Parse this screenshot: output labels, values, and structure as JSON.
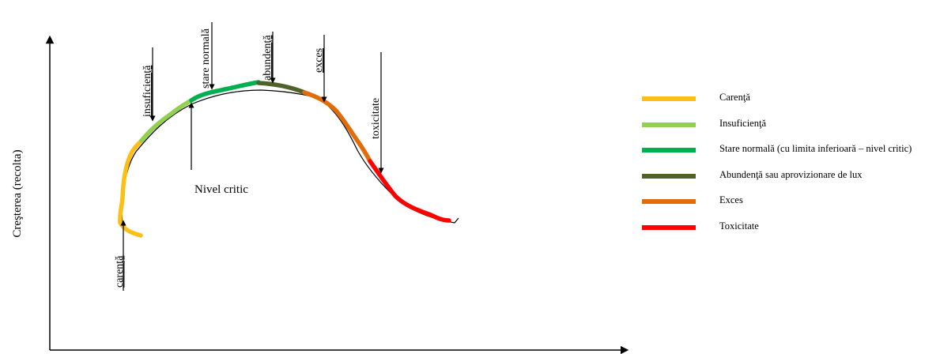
{
  "diagram": {
    "y_axis_label": "Creşterea  (recolta)",
    "annotations": {
      "carenta": "carenţă",
      "insuficienta": "insuficienţă",
      "stare_normala": "stare normală",
      "abundenta": "abundenţă",
      "exces": "exces",
      "toxicitate": "toxicitate",
      "nivel_critic": "Nivel critic"
    }
  },
  "legend": {
    "items": [
      {
        "label": "Carenţă",
        "color": "#fbbf16"
      },
      {
        "label": "Insuficienţă",
        "color": "#92d050"
      },
      {
        "label": "Stare normală (cu limita inferioară – nivel critic)",
        "color": "#00b050"
      },
      {
        "label": "Abundenţă sau aprovizionare de lux",
        "color": "#4f6228"
      },
      {
        "label": "Exces",
        "color": "#e36c09"
      },
      {
        "label": "Toxicitate",
        "color": "#ff0000"
      }
    ]
  }
}
